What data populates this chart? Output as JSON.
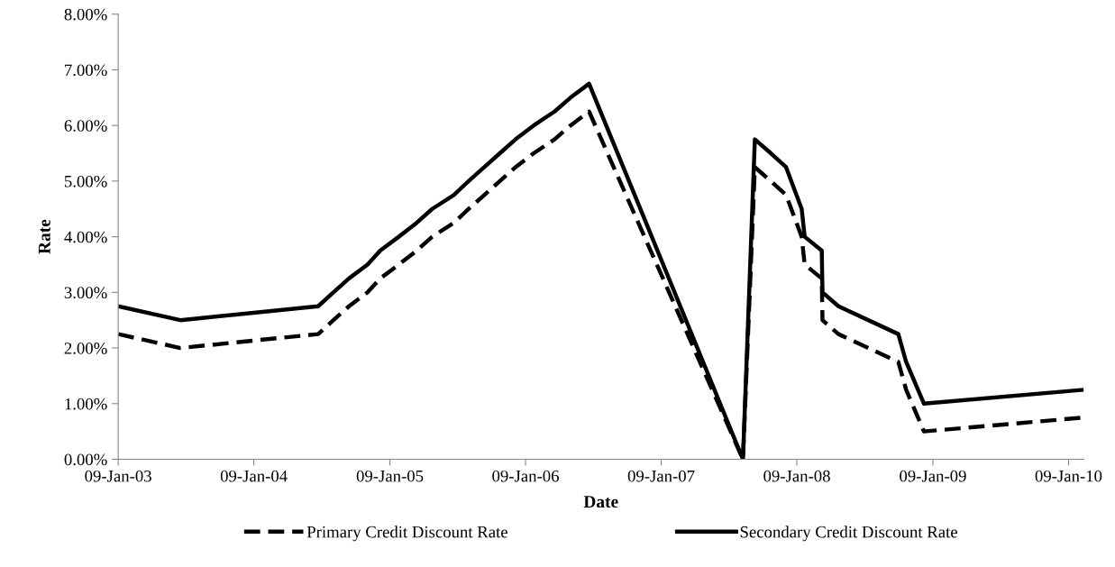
{
  "chart_data": {
    "type": "line",
    "xlabel": "Date",
    "ylabel": "Rate",
    "x": [
      "2003-01-09",
      "2003-06-25",
      "2004-06-30",
      "2004-08-10",
      "2004-09-21",
      "2004-11-10",
      "2004-12-14",
      "2005-02-02",
      "2005-03-22",
      "2005-05-03",
      "2005-06-30",
      "2005-08-09",
      "2005-09-20",
      "2005-11-01",
      "2005-12-13",
      "2006-01-31",
      "2006-03-28",
      "2006-05-10",
      "2006-06-29",
      "2007-08-17",
      "2007-09-18",
      "2007-10-31",
      "2007-12-11",
      "2008-01-22",
      "2008-01-30",
      "2008-03-16",
      "2008-03-18",
      "2008-04-30",
      "2008-10-08",
      "2008-10-29",
      "2008-12-16",
      "2010-02-19"
    ],
    "series": [
      {
        "name": "Primary Credit Discount Rate",
        "color": "#000000",
        "line_style": "dashed",
        "values": [
          2.25,
          2.0,
          2.25,
          2.5,
          2.75,
          3.0,
          3.25,
          3.5,
          3.75,
          4.0,
          4.25,
          4.5,
          4.75,
          5.0,
          5.25,
          5.5,
          5.75,
          6.0,
          6.25,
          0,
          5.25,
          5.0,
          4.75,
          4.0,
          3.5,
          3.25,
          2.5,
          2.25,
          1.75,
          1.25,
          0.5,
          0.75
        ]
      },
      {
        "name": "Secondary Credit Discount Rate",
        "color": "#000000",
        "line_style": "solid",
        "values": [
          2.75,
          2.5,
          2.75,
          3.0,
          3.25,
          3.5,
          3.75,
          4.0,
          4.25,
          4.5,
          4.75,
          5.0,
          5.25,
          5.5,
          5.75,
          6.0,
          6.25,
          6.5,
          6.75,
          0,
          5.75,
          5.5,
          5.25,
          4.5,
          4.0,
          3.75,
          3.0,
          2.75,
          2.25,
          1.75,
          1.0,
          1.25
        ]
      }
    ],
    "xlim": [
      "2003-01-09",
      "2010-02-19"
    ],
    "xticks": [
      {
        "value": "2003-01-09",
        "label": "09-Jan-03"
      },
      {
        "value": "2004-01-09",
        "label": "09-Jan-04"
      },
      {
        "value": "2005-01-09",
        "label": "09-Jan-05"
      },
      {
        "value": "2006-01-09",
        "label": "09-Jan-06"
      },
      {
        "value": "2007-01-09",
        "label": "09-Jan-07"
      },
      {
        "value": "2008-01-09",
        "label": "09-Jan-08"
      },
      {
        "value": "2009-01-09",
        "label": "09-Jan-09"
      },
      {
        "value": "2010-01-09",
        "label": "09-Jan-10"
      }
    ],
    "ylim": [
      0,
      8
    ],
    "yticks": [
      {
        "value": 0,
        "label": "0.00%"
      },
      {
        "value": 1,
        "label": "1.00%"
      },
      {
        "value": 2,
        "label": "2.00%"
      },
      {
        "value": 3,
        "label": "3.00%"
      },
      {
        "value": 4,
        "label": "4.00%"
      },
      {
        "value": 5,
        "label": "5.00%"
      },
      {
        "value": 6,
        "label": "6.00%"
      },
      {
        "value": 7,
        "label": "7.00%"
      },
      {
        "value": 8,
        "label": "8.00%"
      }
    ],
    "grid": false,
    "legend": "bottom",
    "marker": "none"
  }
}
